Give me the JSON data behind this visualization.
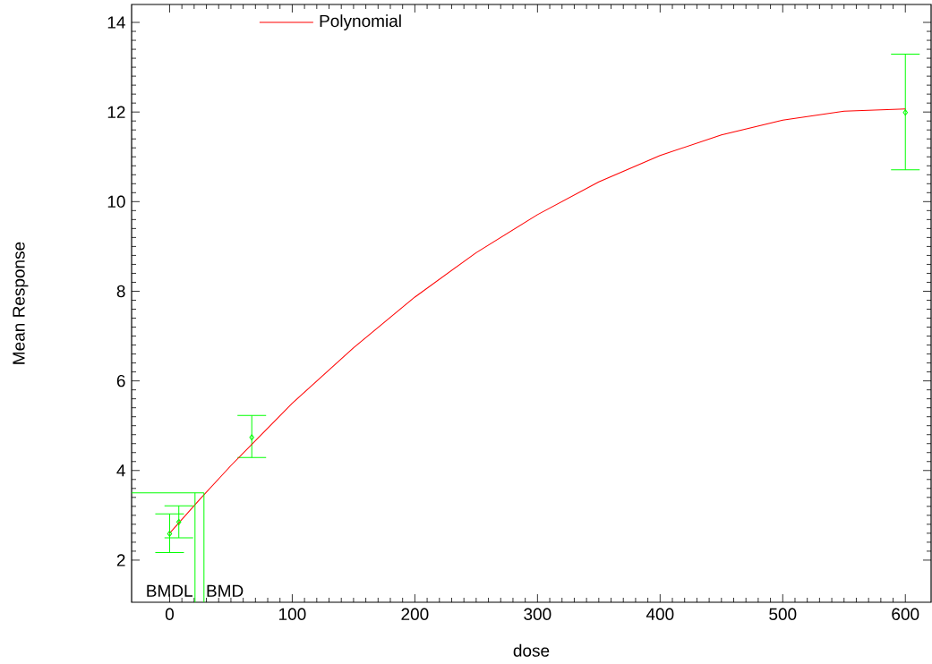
{
  "chart_data": {
    "type": "scatter",
    "xlabel": "dose",
    "ylabel": "Mean Response",
    "xlim": [
      -31,
      621
    ],
    "ylim": [
      1.06,
      14.4
    ],
    "xticks": [
      0,
      100,
      200,
      300,
      400,
      500,
      600
    ],
    "yticks": [
      2,
      4,
      6,
      8,
      10,
      12,
      14
    ],
    "legend": "top left",
    "grid": false,
    "series": [
      {
        "color": "#00ff00",
        "marker": "diamond",
        "x": [
          0,
          7.5,
          67,
          600
        ],
        "values": [
          2.59,
          2.85,
          4.74,
          11.99
        ],
        "errors": [
          [
            2.17,
            3.03
          ],
          [
            2.5,
            3.21
          ],
          [
            4.29,
            5.23
          ],
          [
            10.71,
            13.29
          ]
        ]
      },
      {
        "type": "line",
        "name": "Polynomial",
        "color": "#ff0000",
        "marker": "none",
        "line_style": "solid",
        "x": [
          0,
          25,
          50,
          100,
          150,
          200,
          250,
          300,
          350,
          400,
          450,
          500,
          550,
          600
        ],
        "values": [
          2.6,
          3.37,
          4.11,
          5.5,
          6.74,
          7.87,
          8.86,
          9.71,
          10.44,
          11.03,
          11.49,
          11.82,
          12.02,
          12.07
        ]
      }
    ],
    "ref_lines": [
      {
        "axis": "x",
        "value": 20.7,
        "label": "BMDL",
        "color": "#00ff00"
      },
      {
        "axis": "x",
        "value": 28,
        "label": "BMD",
        "color": "#00ff00"
      },
      {
        "axis": "y",
        "value": 3.5,
        "color": "#00ff00"
      }
    ]
  }
}
